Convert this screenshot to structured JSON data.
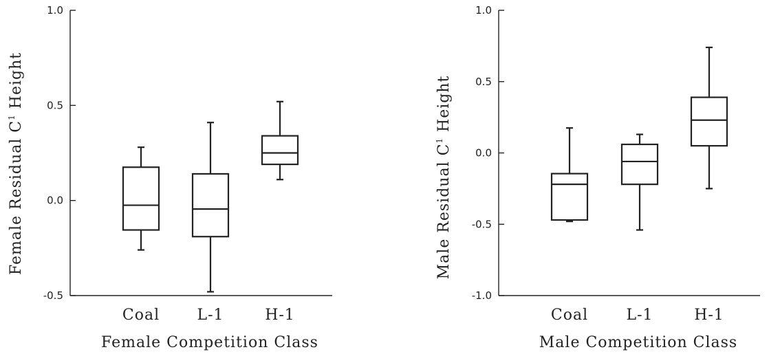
{
  "chart_data": [
    {
      "type": "box",
      "xlabel": "Female Competition Class",
      "ylabel_text": "Female Residual C",
      "ylabel_sup": "1",
      "ylabel_tail": "Height",
      "ylim": [
        -0.5,
        1.0
      ],
      "yticks": [
        "1.0",
        "0.5",
        "0.0",
        "-0.5"
      ],
      "categories": [
        "Coal",
        "L-1",
        "H-1"
      ],
      "boxes": [
        {
          "category": "Coal",
          "min": -0.26,
          "q1": -0.155,
          "median": -0.025,
          "q3": 0.175,
          "max": 0.28
        },
        {
          "category": "L-1",
          "min": -0.48,
          "q1": -0.19,
          "median": -0.045,
          "q3": 0.14,
          "max": 0.41
        },
        {
          "category": "H-1",
          "min": 0.11,
          "q1": 0.19,
          "median": 0.25,
          "q3": 0.34,
          "max": 0.52
        }
      ]
    },
    {
      "type": "box",
      "xlabel": "Male Competition Class",
      "ylabel_text": "Male Residual C",
      "ylabel_sup": "1",
      "ylabel_tail": "Height",
      "ylim": [
        -1.0,
        1.0
      ],
      "yticks": [
        "1.0",
        "0.5",
        "0.0",
        "-0.5",
        "-1.0"
      ],
      "categories": [
        "Coal",
        "L-1",
        "H-1"
      ],
      "boxes": [
        {
          "category": "Coal",
          "min": -0.48,
          "q1": -0.47,
          "median": -0.22,
          "q3": -0.145,
          "max": 0.175
        },
        {
          "category": "L-1",
          "min": -0.54,
          "q1": -0.22,
          "median": -0.06,
          "q3": 0.06,
          "max": 0.13
        },
        {
          "category": "H-1",
          "min": -0.25,
          "q1": 0.05,
          "median": 0.23,
          "q3": 0.39,
          "max": 0.74
        }
      ]
    }
  ]
}
